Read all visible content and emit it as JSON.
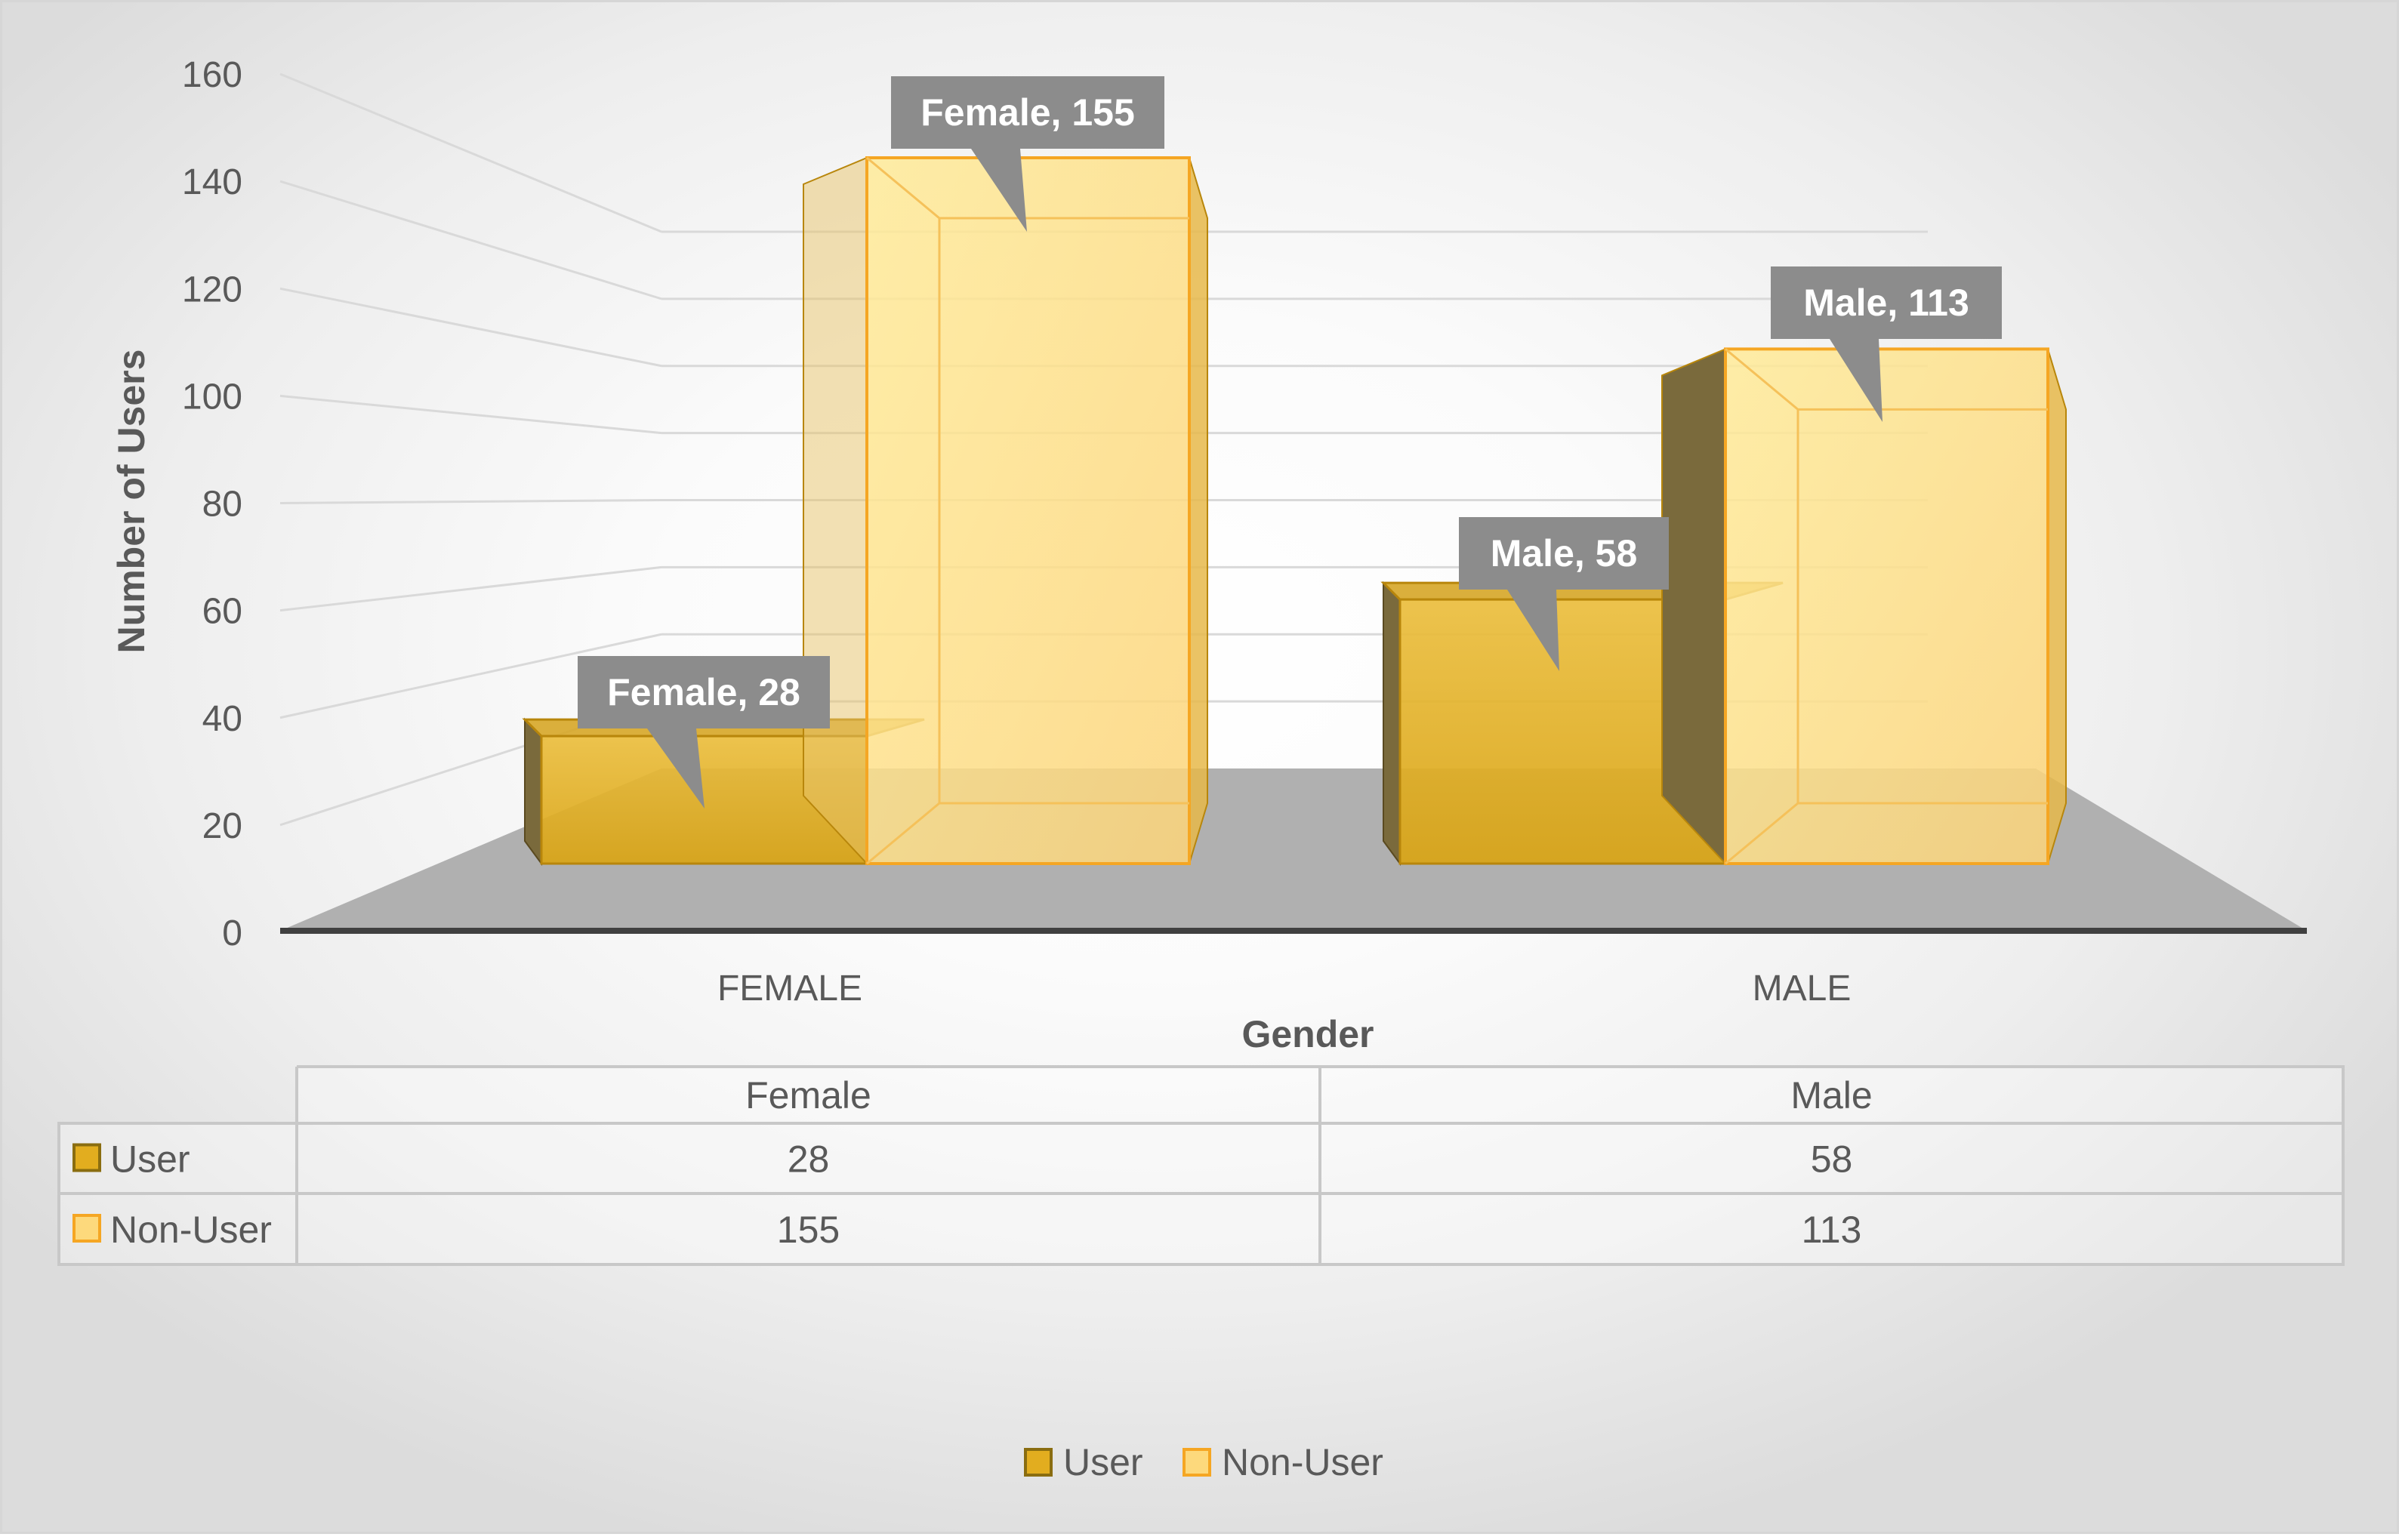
{
  "chart_data": {
    "type": "bar",
    "categories": [
      "FEMALE",
      "MALE"
    ],
    "xlabel": "Gender",
    "ylabel": "Number of Users",
    "ylim": [
      0,
      160
    ],
    "yticks": [
      0,
      20,
      40,
      60,
      80,
      100,
      120,
      140,
      160
    ],
    "grid": true,
    "legend_position": "bottom",
    "series": [
      {
        "name": "User",
        "values": [
          28,
          58
        ],
        "color": "#E2AD1F"
      },
      {
        "name": "Non-User",
        "values": [
          155,
          113
        ],
        "color": "#FDD97C"
      }
    ],
    "data_labels": [
      [
        "Female, 28",
        "Male, 58"
      ],
      [
        "Female, 155",
        "Male, 113"
      ]
    ],
    "data_table": {
      "columns": [
        "Female",
        "Male"
      ],
      "rows": [
        {
          "series": "User",
          "values": [
            "28",
            "58"
          ]
        },
        {
          "series": "Non-User",
          "values": [
            "155",
            "113"
          ]
        }
      ]
    }
  }
}
